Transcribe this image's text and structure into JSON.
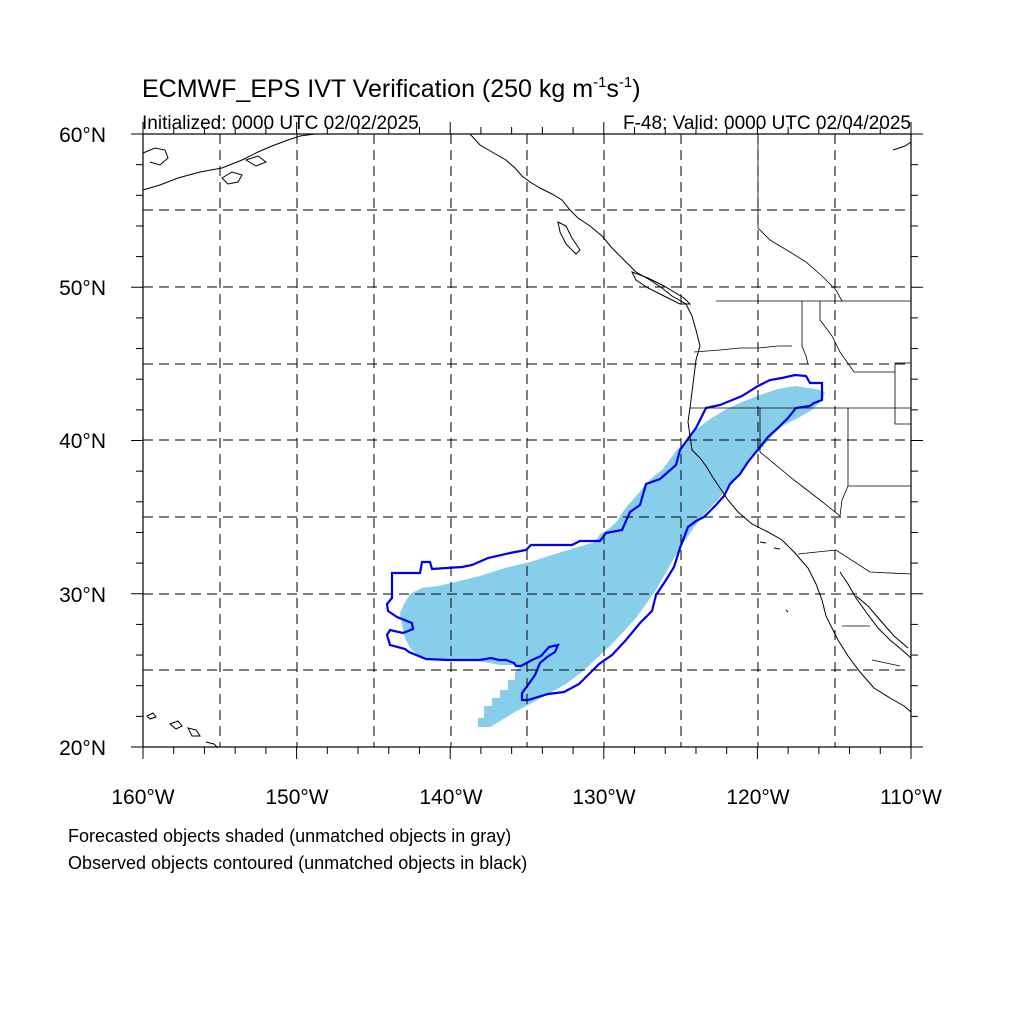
{
  "title": {
    "main_prefix": "ECMWF_EPS IVT Verification (250 kg m",
    "sup1": "-1",
    "mid": "s",
    "sup2": "-1",
    "suffix": ")"
  },
  "initialized_label": "Initialized: 0000 UTC 02/02/2025",
  "valid_label": "F-48: Valid: 0000 UTC 02/04/2025",
  "lat_labels": [
    "60°N",
    "50°N",
    "40°N",
    "30°N",
    "20°N"
  ],
  "lon_labels": [
    "160°W",
    "150°W",
    "140°W",
    "130°W",
    "120°W",
    "110°W"
  ],
  "legend_lines": [
    "Forecasted objects shaded (unmatched objects in gray)",
    "Observed objects contoured (unmatched objects in black)"
  ],
  "colors": {
    "forecast_fill": "#87CEEB",
    "observed_contour": "#0000EE",
    "coastline": "#000000"
  },
  "map_extent": {
    "lon": [
      -160,
      -110
    ],
    "lat": [
      20,
      60
    ]
  }
}
